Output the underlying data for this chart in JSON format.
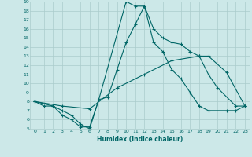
{
  "xlabel": "Humidex (Indice chaleur)",
  "ylabel": "",
  "xlim": [
    -0.5,
    23.5
  ],
  "ylim": [
    5,
    19
  ],
  "xticks": [
    0,
    1,
    2,
    3,
    4,
    5,
    6,
    7,
    8,
    9,
    10,
    11,
    12,
    13,
    14,
    15,
    16,
    17,
    18,
    19,
    20,
    21,
    22,
    23
  ],
  "yticks": [
    5,
    6,
    7,
    8,
    9,
    10,
    11,
    12,
    13,
    14,
    15,
    16,
    17,
    18,
    19
  ],
  "background_color": "#cce8e8",
  "grid_color": "#aacccc",
  "line_color": "#006666",
  "lines": [
    {
      "x": [
        0,
        1,
        2,
        3,
        4,
        5,
        6,
        7,
        10,
        11,
        12,
        13,
        14,
        15,
        16,
        17,
        18,
        19,
        20,
        22,
        23
      ],
      "y": [
        8,
        7.5,
        7.5,
        6.5,
        6.0,
        5.2,
        5.2,
        8.2,
        19.0,
        18.5,
        18.5,
        16.0,
        15.0,
        14.5,
        14.3,
        13.5,
        13.0,
        11.0,
        9.5,
        7.5,
        7.5
      ]
    },
    {
      "x": [
        0,
        2,
        3,
        4,
        5,
        6,
        7,
        8,
        9,
        10,
        11,
        12,
        13,
        14,
        15,
        16,
        17,
        18,
        19,
        21,
        22,
        23
      ],
      "y": [
        8,
        7.5,
        7.0,
        6.5,
        5.5,
        5.0,
        8.2,
        8.5,
        11.5,
        14.5,
        16.5,
        18.5,
        14.5,
        13.5,
        11.5,
        10.5,
        9.0,
        7.5,
        7.0,
        7.0,
        7.0,
        7.5
      ]
    },
    {
      "x": [
        0,
        3,
        6,
        9,
        12,
        15,
        18,
        19,
        21,
        23
      ],
      "y": [
        8,
        7.5,
        7.2,
        9.5,
        11.0,
        12.5,
        13.0,
        13.0,
        11.2,
        7.5
      ]
    }
  ]
}
